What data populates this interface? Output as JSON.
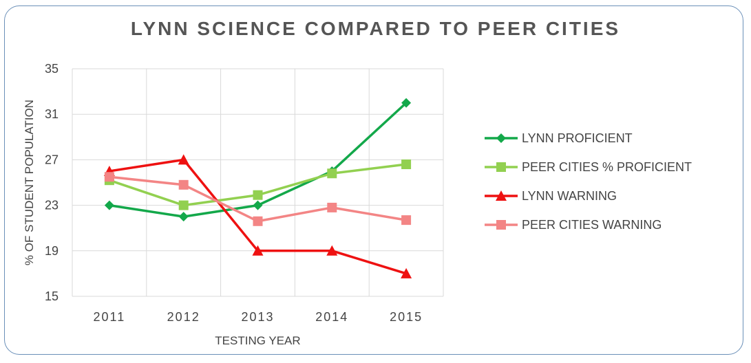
{
  "chart_data": {
    "type": "line",
    "title": "LYNN SCIENCE COMPARED TO PEER CITIES",
    "xlabel": "TESTING YEAR",
    "ylabel": "% OF STUDENT POPULATION",
    "categories": [
      "2011",
      "2012",
      "2013",
      "2014",
      "2015"
    ],
    "ylim": [
      15,
      35
    ],
    "yticks": [
      15,
      19,
      23,
      27,
      31,
      35
    ],
    "grid": true,
    "legend_position": "right",
    "series": [
      {
        "name": "LYNN PROFICIENT",
        "values": [
          23,
          22,
          23,
          26,
          32
        ],
        "color": "#13a84a",
        "marker": "diamond"
      },
      {
        "name": "PEER CITIES % PROFICIENT",
        "values": [
          25.2,
          23,
          23.9,
          25.8,
          26.6
        ],
        "color": "#92d050",
        "marker": "square"
      },
      {
        "name": "LYNN WARNING",
        "values": [
          26,
          27,
          19,
          19,
          17
        ],
        "color": "#ee1111",
        "marker": "triangle"
      },
      {
        "name": "PEER CITIES WARNING",
        "values": [
          25.5,
          24.8,
          21.6,
          22.8,
          21.7
        ],
        "color": "#f38585",
        "marker": "square"
      }
    ]
  }
}
